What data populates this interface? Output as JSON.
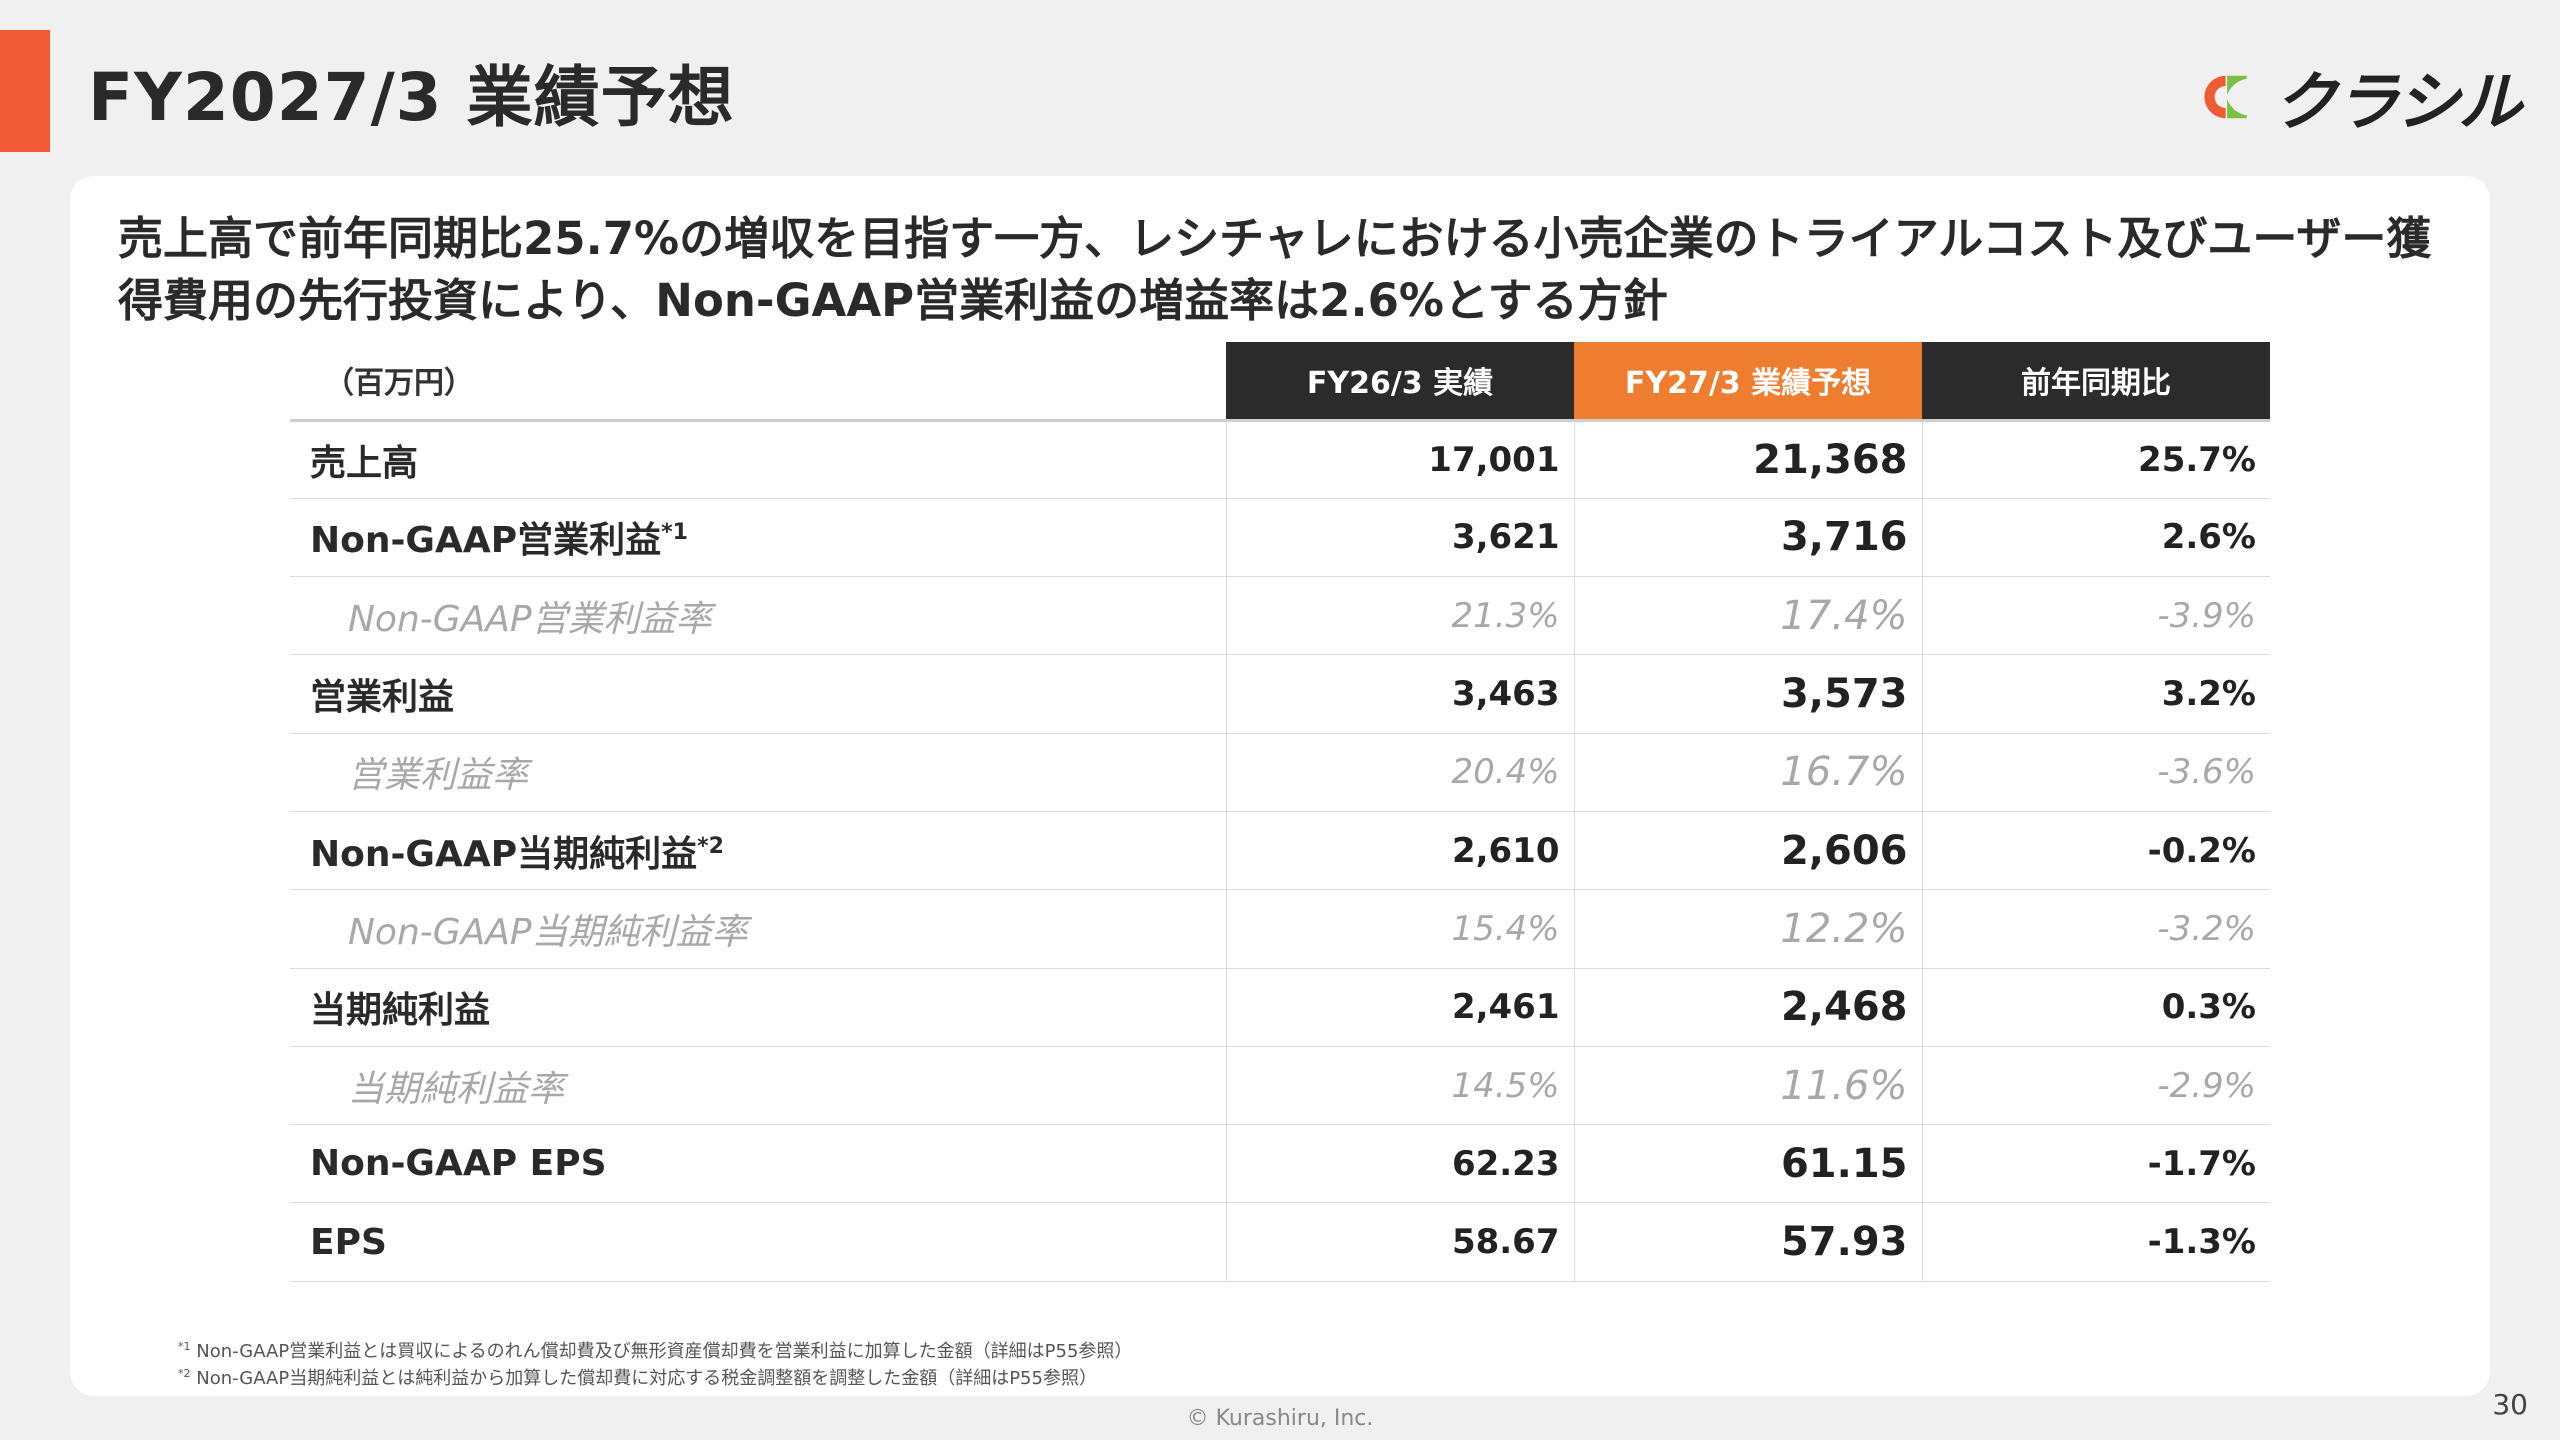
{
  "slide": {
    "title": "FY2027/3 業績予想",
    "accent_color": "#f05a35",
    "headline": "売上高で前年同期比25.7%の増収を目指す一方、レシチャレにおける小売企業のトライアルコスト及びユーザー獲得費用の先行投資により、Non-GAAP営業利益の増益率は2.6%とする方針",
    "page_number": "30",
    "copyright": "© Kurashiru, Inc."
  },
  "logo": {
    "text": "クラシル",
    "colors": {
      "orange": "#f05a35",
      "green": "#7ac143"
    }
  },
  "table": {
    "unit_label": "（百万円）",
    "columns": [
      {
        "label": "FY26/3 実績",
        "color": "#2b2b2b"
      },
      {
        "label": "FY27/3 業績予想",
        "color": "#ee7d2f"
      },
      {
        "label": "前年同期比",
        "color": "#2b2b2b"
      }
    ],
    "rows": [
      {
        "label": "売上高",
        "footnote": "",
        "sub": false,
        "values": [
          "17,001",
          "21,368",
          "25.7%"
        ]
      },
      {
        "label": "Non-GAAP営業利益",
        "footnote": "*1",
        "sub": false,
        "values": [
          "3,621",
          "3,716",
          "2.6%"
        ]
      },
      {
        "label": "Non-GAAP営業利益率",
        "footnote": "",
        "sub": true,
        "values": [
          "21.3%",
          "17.4%",
          "-3.9%"
        ]
      },
      {
        "label": "営業利益",
        "footnote": "",
        "sub": false,
        "values": [
          "3,463",
          "3,573",
          "3.2%"
        ]
      },
      {
        "label": "営業利益率",
        "footnote": "",
        "sub": true,
        "values": [
          "20.4%",
          "16.7%",
          "-3.6%"
        ]
      },
      {
        "label": "Non-GAAP当期純利益",
        "footnote": "*2",
        "sub": false,
        "values": [
          "2,610",
          "2,606",
          "-0.2%"
        ]
      },
      {
        "label": "Non-GAAP当期純利益率",
        "footnote": "",
        "sub": true,
        "values": [
          "15.4%",
          "12.2%",
          "-3.2%"
        ]
      },
      {
        "label": "当期純利益",
        "footnote": "",
        "sub": false,
        "values": [
          "2,461",
          "2,468",
          "0.3%"
        ]
      },
      {
        "label": "当期純利益率",
        "footnote": "",
        "sub": true,
        "values": [
          "14.5%",
          "11.6%",
          "-2.9%"
        ]
      },
      {
        "label": "Non-GAAP EPS",
        "footnote": "",
        "sub": false,
        "values": [
          "62.23",
          "61.15",
          "-1.7%"
        ]
      },
      {
        "label": "EPS",
        "footnote": "",
        "sub": false,
        "values": [
          "58.67",
          "57.93",
          "-1.3%"
        ]
      }
    ]
  },
  "footnotes": [
    {
      "mark": "*1",
      "text": "Non-GAAP営業利益とは買収によるのれん償却費及び無形資産償却費を営業利益に加算した金額（詳細はP55参照）"
    },
    {
      "mark": "*2",
      "text": "Non-GAAP当期純利益とは純利益から加算した償却費に対応する税金調整額を調整した金額（詳細はP55参照）"
    }
  ]
}
